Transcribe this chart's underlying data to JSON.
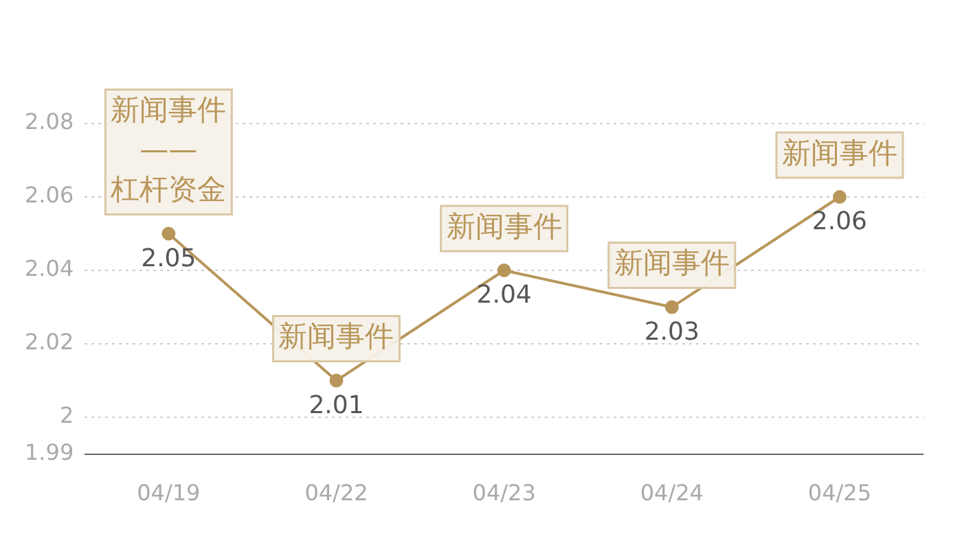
{
  "chart_data": {
    "type": "line",
    "categories": [
      "04/19",
      "04/22",
      "04/23",
      "04/24",
      "04/25"
    ],
    "series": [
      {
        "color": "#b8965a",
        "values": [
          2.05,
          2.01,
          2.04,
          2.03,
          2.06
        ]
      }
    ],
    "ylim": [
      1.99,
      2.08
    ],
    "yticks": [
      1.99,
      2,
      2.02,
      2.04,
      2.06,
      2.08
    ],
    "grid": "y",
    "marker": "circle",
    "line_style": "solid",
    "data_labels": true,
    "legend": false,
    "annotations": [
      {
        "text": "新闻事件\n——\n杠杆资金",
        "x": "04/19",
        "y": 2.05
      },
      {
        "text": "新闻事件",
        "x": "04/22",
        "y": 2.01
      },
      {
        "text": "新闻事件",
        "x": "04/23",
        "y": 2.04
      },
      {
        "text": "新闻事件",
        "x": "04/24",
        "y": 2.03
      },
      {
        "text": "新闻事件",
        "x": "04/25",
        "y": 2.06
      }
    ]
  }
}
